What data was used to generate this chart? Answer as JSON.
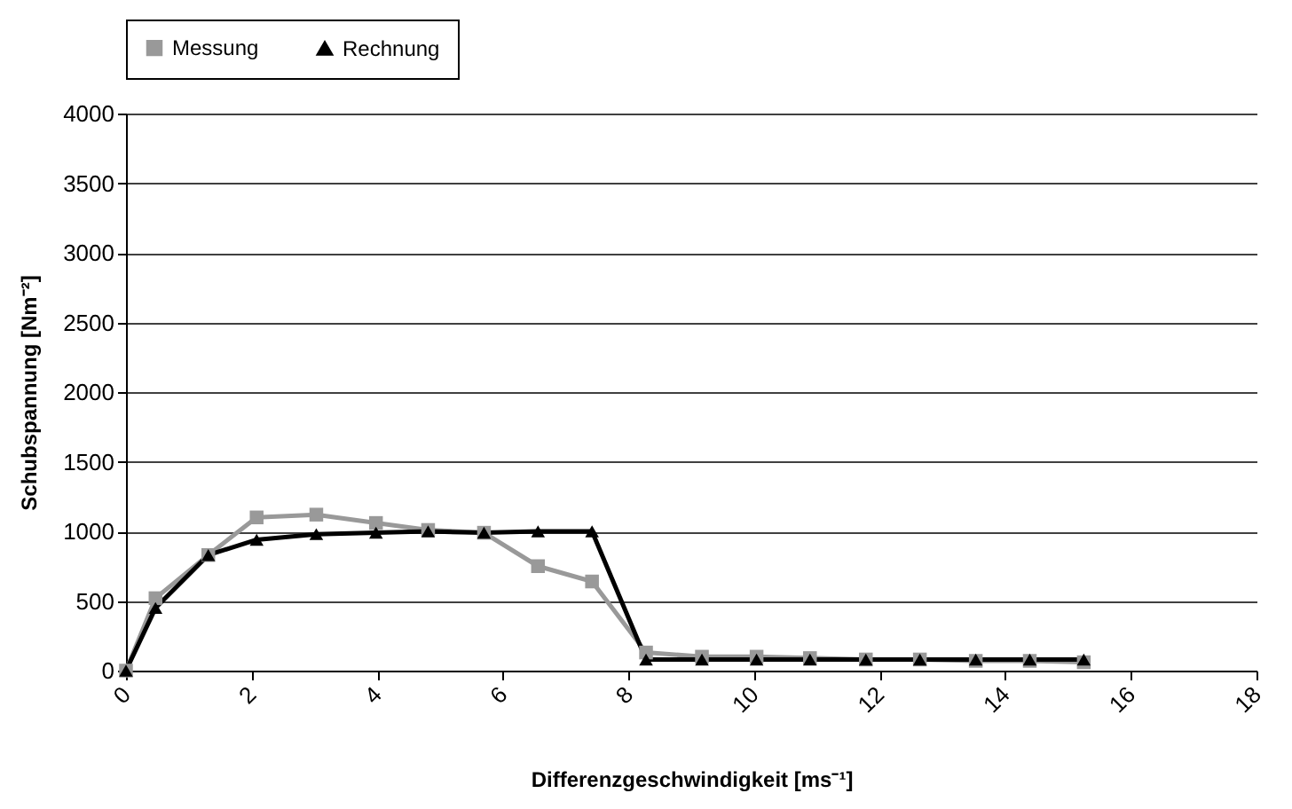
{
  "chart_data": {
    "type": "line",
    "xlabel": "Differenzgeschwindigkeit [ms⁻¹]",
    "ylabel": "Schubspannung [Nm⁻²]",
    "x": [
      0,
      0.47,
      1.31,
      2.08,
      3.03,
      3.98,
      4.81,
      5.7,
      6.56,
      7.42,
      8.28,
      9.17,
      10.04,
      10.89,
      11.78,
      12.64,
      13.53,
      14.39,
      15.25
    ],
    "series": [
      {
        "name": "Messung",
        "color": "#999999",
        "marker": "square",
        "values": [
          0,
          520,
          830,
          1100,
          1120,
          1060,
          1010,
          990,
          750,
          640,
          130,
          100,
          100,
          90,
          80,
          80,
          70,
          70,
          60
        ]
      },
      {
        "name": "Rechnung",
        "color": "#000000",
        "marker": "triangle",
        "values": [
          0,
          450,
          830,
          940,
          980,
          990,
          1000,
          990,
          1000,
          1000,
          80,
          80,
          80,
          80,
          80,
          80,
          80,
          80,
          80
        ]
      }
    ],
    "xlim": [
      0,
      18
    ],
    "xticks": [
      0,
      2,
      4,
      6,
      8,
      10,
      12,
      14,
      16,
      18
    ],
    "ylim": [
      0,
      4000
    ],
    "yticks": [
      0,
      500,
      1000,
      1500,
      2000,
      2500,
      3000,
      3500,
      4000
    ],
    "grid": "y",
    "legend": "top left",
    "line_style": "solid"
  }
}
